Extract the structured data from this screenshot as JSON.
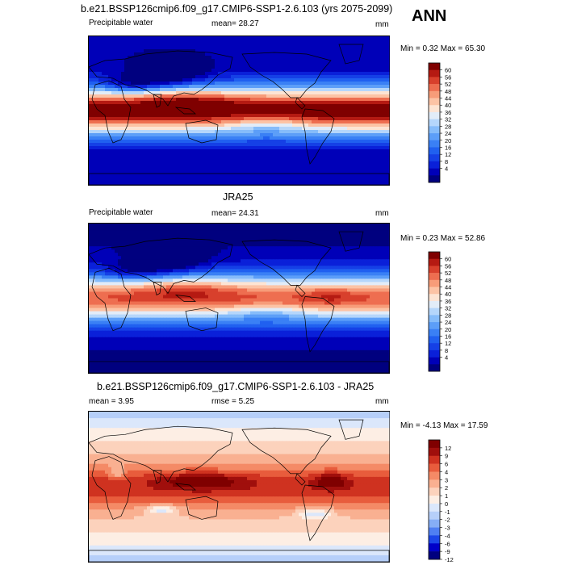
{
  "header": {
    "title": "b.e21.BSSP126cmip6.f09_g17.CMIP6-SSP1-2.6.103 (yrs 2075-2099)",
    "season": "ANN"
  },
  "panels": [
    {
      "id": "model",
      "variable": "Precipitable water",
      "mean_text": "mean=  28.27",
      "units": "mm",
      "minmax_text": "Min =   0.32 Max =  65.30",
      "colorbar_labels": [
        "60",
        "56",
        "52",
        "48",
        "44",
        "40",
        "36",
        "32",
        "28",
        "24",
        "20",
        "16",
        "12",
        "8",
        "4"
      ]
    },
    {
      "id": "obs",
      "title": "JRA25",
      "variable": "Precipitable water",
      "mean_text": "mean=  24.31",
      "units": "mm",
      "minmax_text": "Min =   0.23 Max =  52.86",
      "colorbar_labels": [
        "60",
        "56",
        "52",
        "48",
        "44",
        "40",
        "36",
        "32",
        "28",
        "24",
        "20",
        "16",
        "12",
        "8",
        "4"
      ]
    },
    {
      "id": "diff",
      "title": "b.e21.BSSP126cmip6.f09_g17.CMIP6-SSP1-2.6.103 - JRA25",
      "mean_text": "mean =    3.95",
      "rmse_text": "rmse =   5.25",
      "units": "mm",
      "minmax_text": "Min =  -4.13 Max =  17.59",
      "colorbar_labels": [
        "12",
        "9",
        "6",
        "4",
        "3",
        "2",
        "1",
        "0",
        "-1",
        "-2",
        "-3",
        "-4",
        "-6",
        "-9",
        "-12"
      ]
    }
  ],
  "colors": {
    "pw_scale": [
      "#00007f",
      "#0000b8",
      "#0a20d9",
      "#1540e6",
      "#2060f0",
      "#3a80f5",
      "#5c9ef8",
      "#86bcfa",
      "#b5d6fb",
      "#e2ecf8",
      "#fde4d3",
      "#fcc3a5",
      "#f79c79",
      "#ee6e50",
      "#d8402c",
      "#b51a12",
      "#7f0000"
    ],
    "diff_scale": [
      "#00007f",
      "#0000c8",
      "#1c46e8",
      "#4f7ff2",
      "#86aef6",
      "#b6cff9",
      "#dbe7fb",
      "#fdeee4",
      "#fcd2bc",
      "#f9b091",
      "#f48a66",
      "#e85c3c",
      "#cf3220",
      "#a00f0c",
      "#7f0000"
    ],
    "land_outline": "#000000"
  }
}
